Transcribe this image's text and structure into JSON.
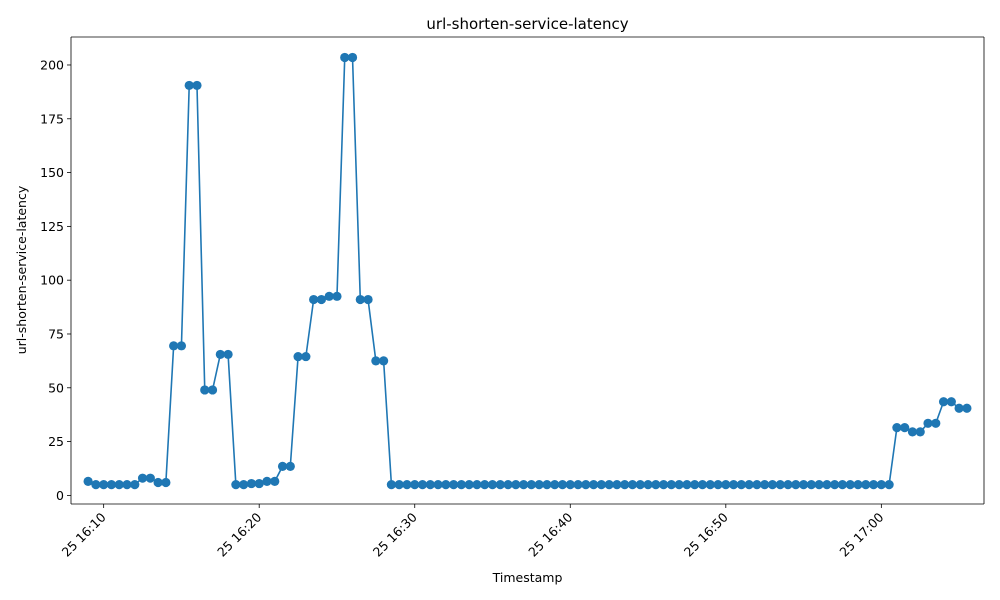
{
  "chart_data": {
    "type": "line",
    "title": "url-shorten-service-latency",
    "xlabel": "Timestamp",
    "ylabel": "url-shorten-service-latency",
    "x_start": "25 16:09:00",
    "x_interval_seconds": 30,
    "x_ticks": [
      "25 16:10",
      "25 16:20",
      "25 16:30",
      "25 16:40",
      "25 16:50",
      "25 17:00"
    ],
    "y_ticks": [
      0,
      25,
      50,
      75,
      100,
      125,
      150,
      175,
      200
    ],
    "ylim": [
      -4,
      213
    ],
    "grid": false,
    "legend": "none",
    "marker": "circle",
    "color": "#1f77b4",
    "series": [
      {
        "values": [
          6.5,
          5,
          5,
          5,
          5,
          5,
          5,
          8,
          8,
          6,
          6,
          69.5,
          69.5,
          190.5,
          190.5,
          49,
          49,
          65.5,
          65.5,
          5,
          5,
          5.5,
          5.5,
          6.5,
          6.5,
          13.5,
          13.5,
          64.5,
          64.5,
          91,
          91,
          92.5,
          92.5,
          203.5,
          203.5,
          91,
          91,
          62.5,
          62.5,
          5,
          5,
          5,
          5,
          5,
          5,
          5,
          5,
          5,
          5,
          5,
          5,
          5,
          5,
          5,
          5,
          5,
          5,
          5,
          5,
          5,
          5,
          5,
          5,
          5,
          5,
          5,
          5,
          5,
          5,
          5,
          5,
          5,
          5,
          5,
          5,
          5,
          5,
          5,
          5,
          5,
          5,
          5,
          5,
          5,
          5,
          5,
          5,
          5,
          5,
          5,
          5,
          5,
          5,
          5,
          5,
          5,
          5,
          5,
          5,
          5,
          5,
          5,
          5,
          5,
          31.5,
          31.5,
          29.5,
          29.5,
          33.5,
          33.5,
          43.5,
          43.5,
          40.5,
          40.5
        ]
      }
    ]
  }
}
